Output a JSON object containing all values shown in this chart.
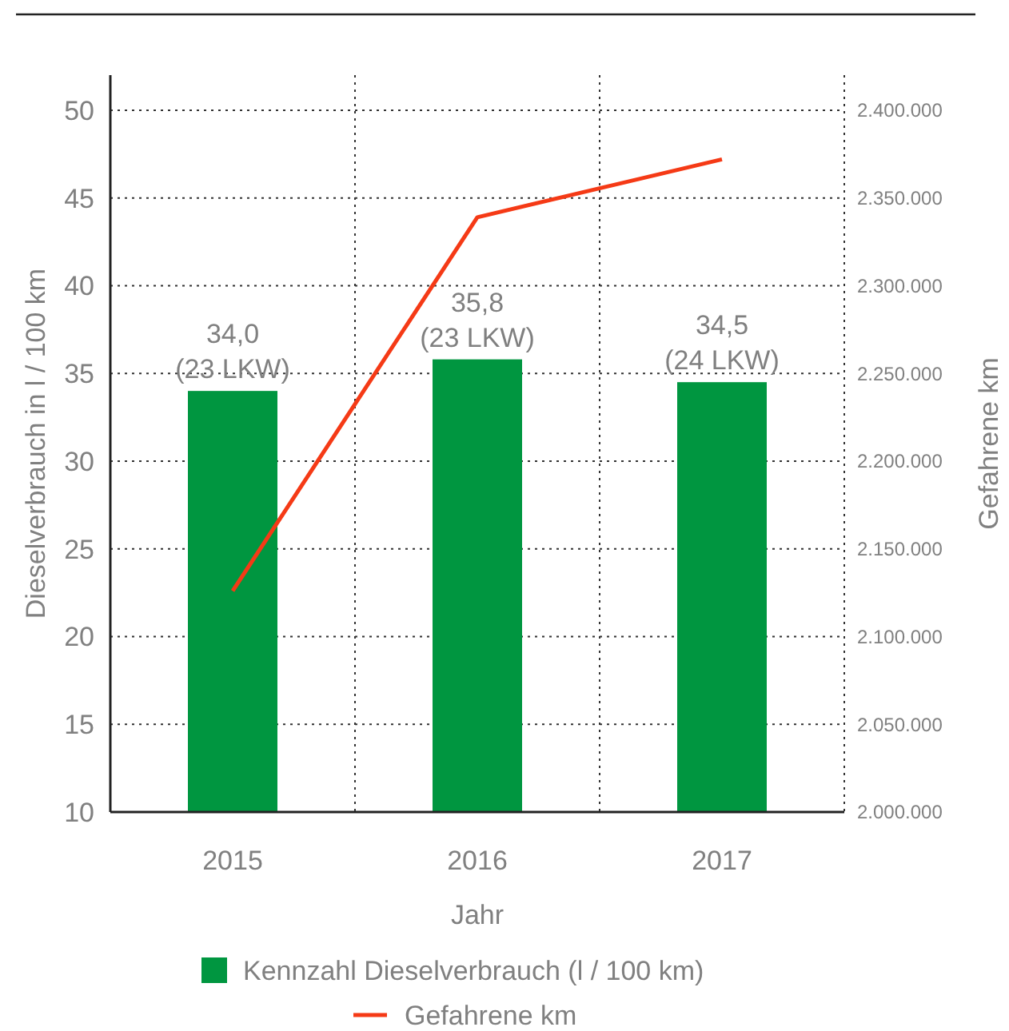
{
  "chart_data": {
    "type": "bar",
    "categories": [
      "2015",
      "2016",
      "2017"
    ],
    "xlabel": "Jahr",
    "ylabel": "Dieselverbrauch in l / 100 km",
    "y2label": "Gefahrene km",
    "series": [
      {
        "name": "Kennzahl Dieselverbrauch (l / 100 km)",
        "color": "#009640",
        "values": [
          34.0,
          35.8,
          34.5
        ],
        "value_labels": [
          "34,0\n(23 LKW)",
          "35,8\n(23 LKW)",
          "34,5\n(24 LKW)"
        ]
      },
      {
        "name": "Gefahrene km",
        "type": "line",
        "axis": "y2",
        "color": "#f53a16",
        "values": [
          2126000,
          2339000,
          2372000
        ]
      }
    ],
    "ylim": [
      10,
      52
    ],
    "yticks": [
      10,
      15,
      20,
      25,
      30,
      35,
      40,
      45,
      50
    ],
    "y2lim": [
      2000000,
      2420000
    ],
    "y2ticks": [
      {
        "value": 2000000,
        "label": "2.000.000"
      },
      {
        "value": 2050000,
        "label": "2.050.000"
      },
      {
        "value": 2100000,
        "label": "2.100.000"
      },
      {
        "value": 2150000,
        "label": "2.150.000"
      },
      {
        "value": 2200000,
        "label": "2.200.000"
      },
      {
        "value": 2250000,
        "label": "2.250.000"
      },
      {
        "value": 2300000,
        "label": "2.300.000"
      },
      {
        "value": 2350000,
        "label": "2.350.000"
      },
      {
        "value": 2400000,
        "label": "2.400.000"
      }
    ],
    "grid": true,
    "legend": "bottom",
    "marker": "none",
    "line_style": "solid"
  }
}
